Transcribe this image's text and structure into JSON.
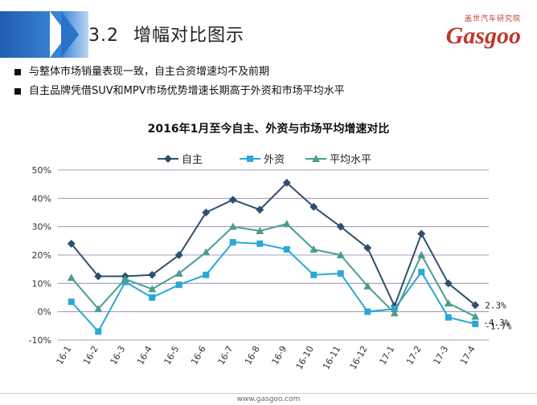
{
  "header": {
    "section_num": "3.2",
    "section_title": "增幅对比图示",
    "logo_top": "盖世汽车研究院",
    "logo_main": "Gasgoo"
  },
  "bullets": [
    "与整体市场销量表现一致，自主合资增速均不及前期",
    "自主品牌凭借SUV和MPV市场优势增速长期高于外资和市场平均水平"
  ],
  "footer": "www.gasgoo.com",
  "colors": {
    "accent": "#2b73c6",
    "series1": "#2f4f6f",
    "series2": "#2aa7d6",
    "series3": "#4a9c8f"
  },
  "chart_data": {
    "type": "line",
    "title": "2016年1月至今自主、外资与市场平均增速对比",
    "categories": [
      "16-1",
      "16-2",
      "16-3",
      "16-4",
      "16-5",
      "16-6",
      "16-7",
      "16-8",
      "16-9",
      "16-10",
      "16-11",
      "16-12",
      "17-1",
      "17-2",
      "17-3",
      "17-4"
    ],
    "y_ticks": [
      "50%",
      "40%",
      "30%",
      "20%",
      "10%",
      "0%",
      "-10%"
    ],
    "ylim": [
      -10,
      50
    ],
    "legend_position": "top",
    "grid": true,
    "series": [
      {
        "name": "自主",
        "marker": "diamond",
        "values": [
          24,
          12.5,
          12.5,
          13,
          20,
          35,
          39.5,
          36,
          45.5,
          37,
          30,
          22.5,
          2,
          27.5,
          10,
          2.3
        ]
      },
      {
        "name": "外资",
        "marker": "square",
        "values": [
          3.5,
          -7,
          10.5,
          5,
          9.5,
          13,
          24.5,
          24,
          22,
          13,
          13.5,
          0,
          1,
          14,
          -2,
          -4.3
        ]
      },
      {
        "name": "平均水平",
        "marker": "triangle",
        "values": [
          12,
          1,
          11.5,
          8,
          13.5,
          21,
          30,
          28.5,
          31,
          22,
          20,
          9,
          -0.5,
          20,
          3,
          -1.7
        ]
      }
    ],
    "end_labels": [
      "2.3%",
      "-4.3%",
      "-1.7%"
    ]
  }
}
